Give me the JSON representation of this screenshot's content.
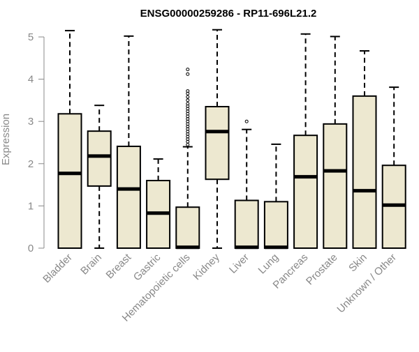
{
  "chart_data": {
    "type": "boxplot",
    "title": "ENSG00000259286 - RP11-696L21.2",
    "xlabel": "",
    "ylabel": "Expression",
    "ylim": [
      0,
      5.25
    ],
    "yticks": [
      0,
      1,
      2,
      3,
      4,
      5
    ],
    "grid": false,
    "legend": "none",
    "box_fill": "#ede8d0",
    "box_stroke": "#000000",
    "categories": [
      "Bladder",
      "Brain",
      "Breast",
      "Gastric",
      "Hematopoietic cells",
      "Kidney",
      "Liver",
      "Lung",
      "Pancreas",
      "Prostate",
      "Skin",
      "Unknown / Other"
    ],
    "boxes": [
      {
        "category": "Bladder",
        "whisker_low": 0,
        "q1": 0,
        "median": 1.77,
        "q3": 3.18,
        "whisker_high": 5.15,
        "outliers": []
      },
      {
        "category": "Brain",
        "whisker_low": 0,
        "q1": 1.47,
        "median": 2.18,
        "q3": 2.77,
        "whisker_high": 3.38,
        "outliers": []
      },
      {
        "category": "Breast",
        "whisker_low": 0,
        "q1": 0,
        "median": 1.4,
        "q3": 2.41,
        "whisker_high": 5.02,
        "outliers": []
      },
      {
        "category": "Gastric",
        "whisker_low": 0,
        "q1": 0,
        "median": 0.83,
        "q3": 1.6,
        "whisker_high": 2.11,
        "outliers": []
      },
      {
        "category": "Hematopoietic cells",
        "whisker_low": 0,
        "q1": 0,
        "median": 0.02,
        "q3": 0.97,
        "whisker_high": 2.4,
        "outliers": [
          2.45,
          2.52,
          2.58,
          2.64,
          2.7,
          2.76,
          2.82,
          2.88,
          2.94,
          3.0,
          3.06,
          3.12,
          3.18,
          3.24,
          3.3,
          3.36,
          3.42,
          3.5,
          3.58,
          3.66,
          3.72,
          4.12,
          4.23
        ]
      },
      {
        "category": "Kidney",
        "whisker_low": 0,
        "q1": 1.63,
        "median": 2.76,
        "q3": 3.35,
        "whisker_high": 5.17,
        "outliers": []
      },
      {
        "category": "Liver",
        "whisker_low": 0,
        "q1": 0,
        "median": 0.02,
        "q3": 1.13,
        "whisker_high": 2.81,
        "outliers": [
          3.0
        ]
      },
      {
        "category": "Lung",
        "whisker_low": 0,
        "q1": 0,
        "median": 0.02,
        "q3": 1.1,
        "whisker_high": 2.46,
        "outliers": []
      },
      {
        "category": "Pancreas",
        "whisker_low": 0,
        "q1": 0,
        "median": 1.69,
        "q3": 2.67,
        "whisker_high": 5.07,
        "outliers": []
      },
      {
        "category": "Prostate",
        "whisker_low": 0,
        "q1": 0,
        "median": 1.83,
        "q3": 2.94,
        "whisker_high": 5.01,
        "outliers": []
      },
      {
        "category": "Skin",
        "whisker_low": 0,
        "q1": 0,
        "median": 1.36,
        "q3": 3.6,
        "whisker_high": 4.67,
        "outliers": []
      },
      {
        "category": "Unknown / Other",
        "whisker_low": 0,
        "q1": 0,
        "median": 1.02,
        "q3": 1.96,
        "whisker_high": 3.81,
        "outliers": []
      }
    ]
  }
}
